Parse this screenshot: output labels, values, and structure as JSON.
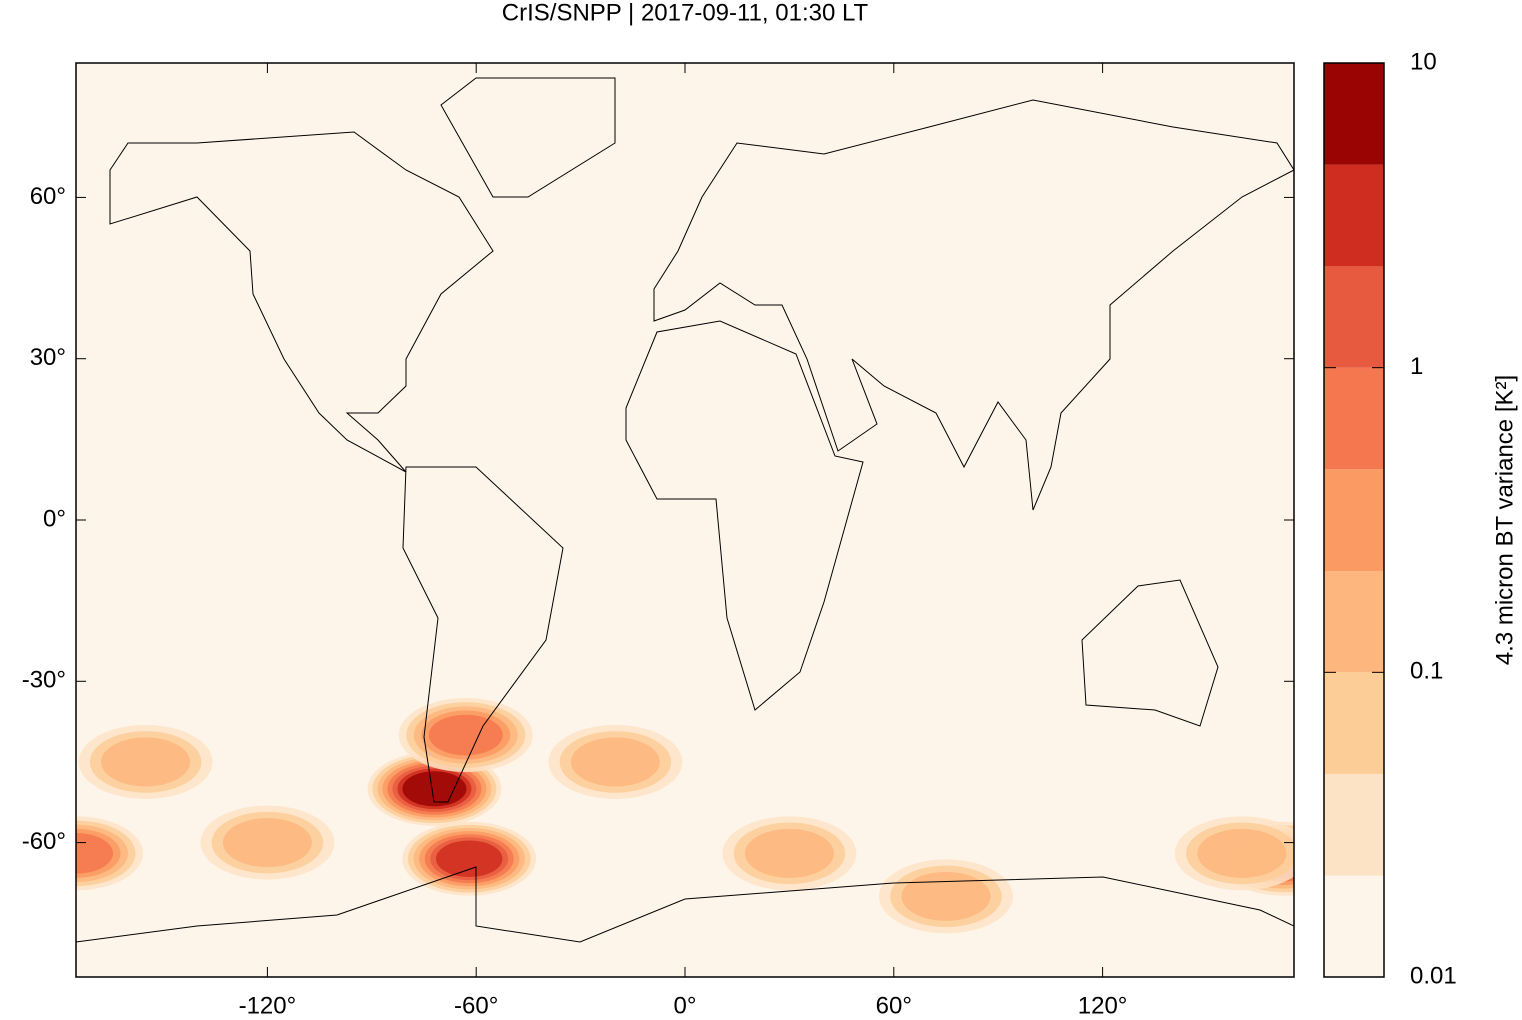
{
  "chart_data": {
    "type": "map",
    "title": "CrIS/SNPP | 2017-09-11, 01:30 LT",
    "colorbar_label": "4.3 micron BT variance [K²]",
    "xlim": [
      -175,
      175
    ],
    "ylim": [
      -85,
      85
    ],
    "xticks": [
      {
        "value": -120,
        "label": "-120°"
      },
      {
        "value": -60,
        "label": "-60°"
      },
      {
        "value": 0,
        "label": "0°"
      },
      {
        "value": 60,
        "label": "60°"
      },
      {
        "value": 120,
        "label": "120°"
      }
    ],
    "yticks": [
      {
        "value": -60,
        "label": "-60°"
      },
      {
        "value": -30,
        "label": "-30°"
      },
      {
        "value": 0,
        "label": "0°"
      },
      {
        "value": 30,
        "label": "30°"
      },
      {
        "value": 60,
        "label": "60°"
      }
    ],
    "clim": [
      0.01,
      10
    ],
    "log_scale": true,
    "cticks": [
      0.01,
      0.1,
      1,
      10
    ],
    "levels": [
      0.01,
      0.0215,
      0.0464,
      0.1,
      0.215,
      0.464,
      1,
      2.15,
      4.64,
      10
    ],
    "colors": [
      "#fef5ea",
      "#fde3c5",
      "#fdcd98",
      "#fdb67d",
      "#fc9a63",
      "#f5774f",
      "#e85a3f",
      "#cf2d1f",
      "#9a0504"
    ],
    "hotspots": [
      {
        "lon": -72,
        "lat": -50,
        "value": 8
      },
      {
        "lon": -62,
        "lat": -63,
        "value": 3
      },
      {
        "lon": -63,
        "lat": -40,
        "value": 0.5
      },
      {
        "lon": 172,
        "lat": -63,
        "value": 1.5
      },
      {
        "lon": -175,
        "lat": -62,
        "value": 0.5
      },
      {
        "lon": -155,
        "lat": -45,
        "value": 0.2
      },
      {
        "lon": -120,
        "lat": -60,
        "value": 0.15
      },
      {
        "lon": -20,
        "lat": -45,
        "value": 0.2
      },
      {
        "lon": 30,
        "lat": -62,
        "value": 0.2
      },
      {
        "lon": 160,
        "lat": -62,
        "value": 0.1
      },
      {
        "lon": 75,
        "lat": -70,
        "value": 0.1
      }
    ]
  }
}
